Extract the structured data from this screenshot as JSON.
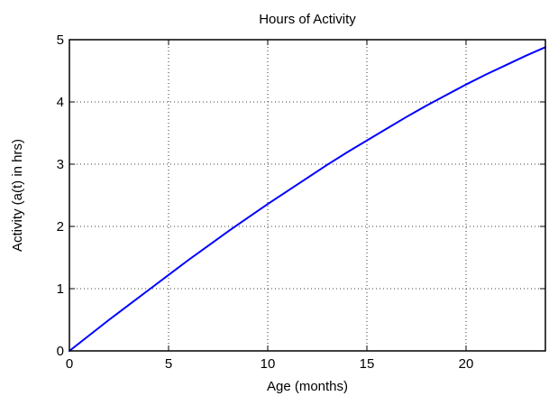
{
  "chart_data": {
    "type": "line",
    "title": "Hours of Activity",
    "xlabel": "Age (months)",
    "ylabel": "Activity (a(t) in hrs)",
    "xlim": [
      0,
      24
    ],
    "ylim": [
      0,
      5
    ],
    "xticks": [
      0,
      5,
      10,
      15,
      20
    ],
    "yticks": [
      0,
      1,
      2,
      3,
      4,
      5
    ],
    "grid": true,
    "series": [
      {
        "color": "#0000ff",
        "x": [
          0,
          1,
          2,
          3,
          4,
          5,
          6,
          7,
          8,
          9,
          10,
          11,
          12,
          13,
          14,
          15,
          16,
          17,
          18,
          19,
          20,
          21,
          22,
          23,
          24
        ],
        "y": [
          0,
          0.25,
          0.5,
          0.74,
          0.98,
          1.22,
          1.46,
          1.69,
          1.92,
          2.14,
          2.36,
          2.57,
          2.78,
          2.99,
          3.19,
          3.38,
          3.57,
          3.76,
          3.94,
          4.11,
          4.28,
          4.44,
          4.59,
          4.74,
          4.88
        ]
      }
    ]
  }
}
